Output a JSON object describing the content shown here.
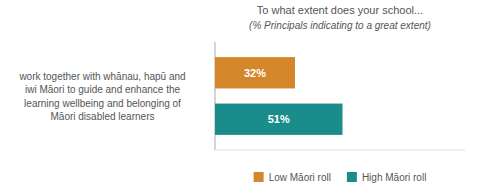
{
  "chart_data": {
    "type": "bar",
    "orientation": "horizontal",
    "title": "To what extent does your school...",
    "subtitle": "(% Principals indicating to a great extent)",
    "categories": [
      "work together with whānau, hapū and\niwi Māori to guide and enhance the\nlearning wellbeing and belonging of\nMāori disabled learners"
    ],
    "series": [
      {
        "name": "Low Māori roll",
        "color": "#D4862A",
        "values": [
          32
        ],
        "value_labels": [
          "32%"
        ]
      },
      {
        "name": "High Māori roll",
        "color": "#1A8C8C",
        "values": [
          51
        ],
        "value_labels": [
          "51%"
        ]
      }
    ],
    "xlim": [
      0,
      100
    ],
    "data_labels": true,
    "tick_labels": false,
    "grid": false,
    "legend": "bottom"
  }
}
